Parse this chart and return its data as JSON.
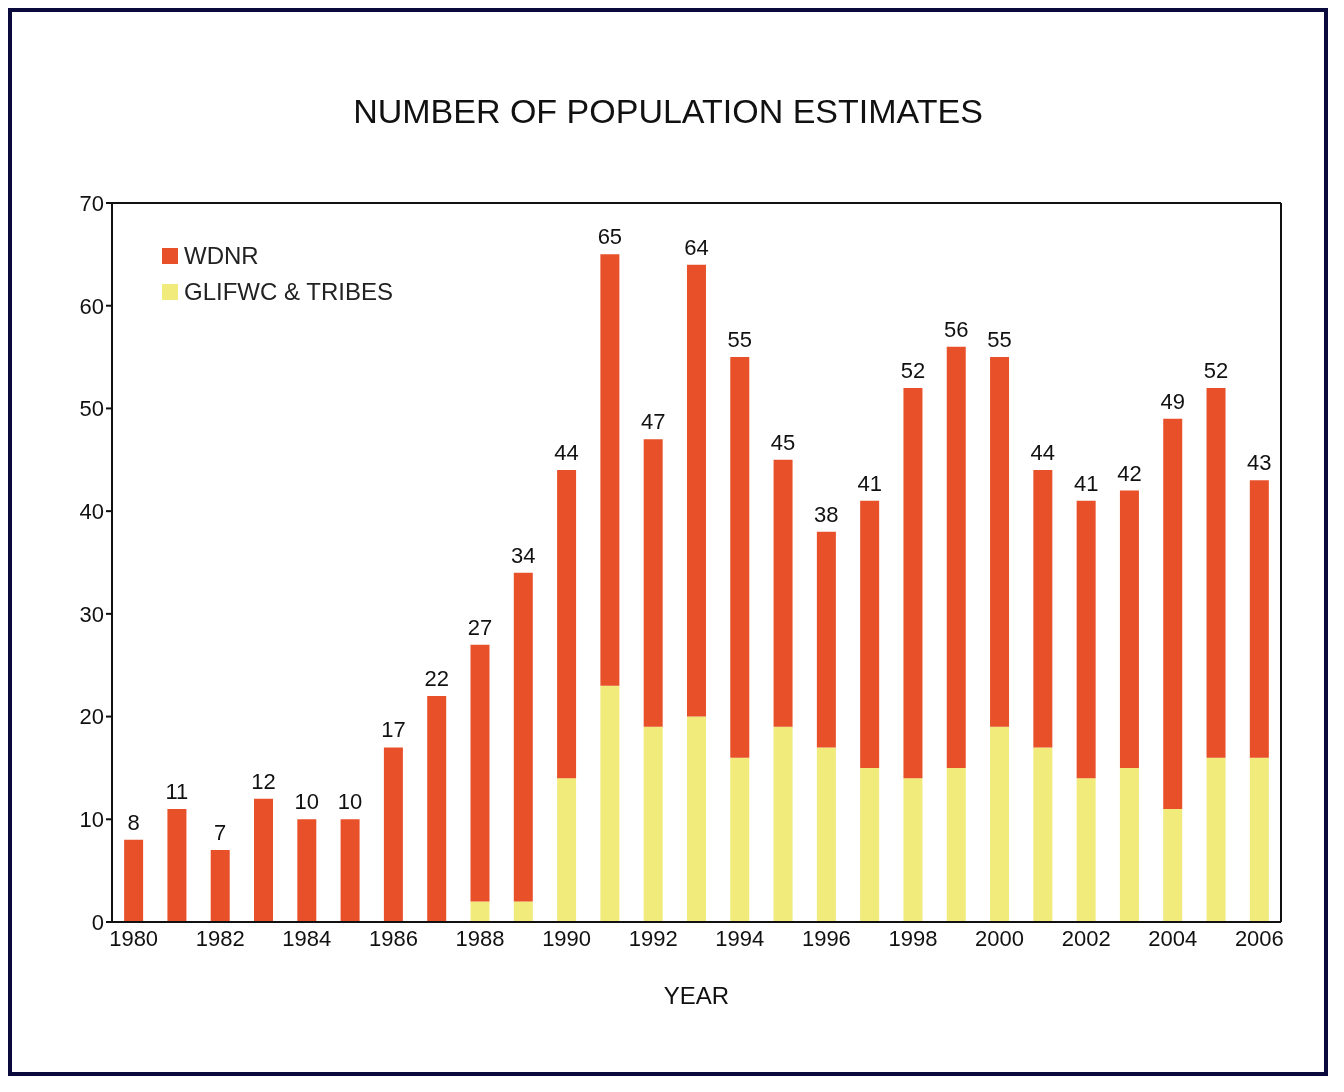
{
  "chart_data": {
    "type": "bar",
    "title": "NUMBER OF POPULATION ESTIMATES",
    "xlabel": "YEAR",
    "categories": [
      "1980",
      null,
      "1982",
      null,
      "1984",
      null,
      "1986",
      null,
      "1988",
      null,
      "1990",
      null,
      "1992",
      null,
      "1994",
      null,
      "1996",
      null,
      "1998",
      null,
      "2000",
      null,
      "2002",
      null,
      "2004",
      null,
      "2006"
    ],
    "stacked": true,
    "series": [
      {
        "name": "GLIFWC & TRIBES",
        "color": "#f0eb7a",
        "values": [
          0,
          0,
          0,
          0,
          0,
          0,
          0,
          0,
          2,
          2,
          14,
          23,
          19,
          20,
          16,
          19,
          17,
          15,
          14,
          15,
          19,
          17,
          14,
          15,
          11,
          16,
          16
        ]
      },
      {
        "name": "WDNR",
        "color": "#e8502a",
        "values": [
          8,
          11,
          7,
          12,
          10,
          10,
          17,
          22,
          25,
          32,
          30,
          42,
          28,
          44,
          39,
          26,
          21,
          26,
          38,
          41,
          36,
          27,
          27,
          27,
          38,
          36,
          27
        ]
      }
    ],
    "totals": [
      "8",
      "11",
      "7",
      "12",
      "10",
      "10",
      "17",
      "22",
      "27",
      "34",
      "44",
      "65",
      "47",
      "64",
      "55",
      "45",
      "38",
      "41",
      "52",
      "56",
      "55",
      "44",
      "41",
      "42",
      "49",
      "52",
      "43"
    ],
    "ylim": [
      0,
      70
    ],
    "yticks": [
      0,
      10,
      20,
      30,
      40,
      50,
      60,
      70
    ],
    "legend": "top left"
  }
}
